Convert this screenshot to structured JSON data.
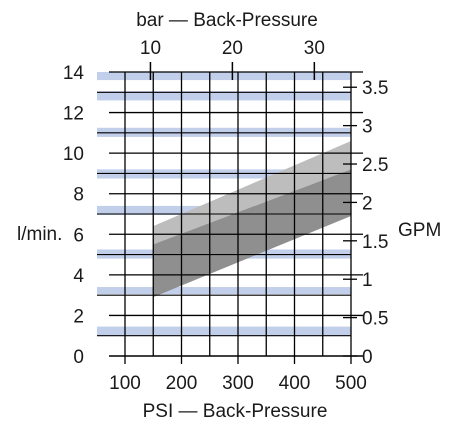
{
  "chart_data": {
    "type": "area",
    "title": "",
    "x_bottom": {
      "label": "PSI — Back-Pressure",
      "ticks": [
        100,
        200,
        300,
        400,
        500
      ],
      "range": [
        100,
        500
      ]
    },
    "x_top": {
      "label": "bar — Back-Pressure",
      "ticks": [
        10,
        20,
        30
      ]
    },
    "y_left": {
      "label": "l/min.",
      "ticks": [
        0,
        2,
        4,
        6,
        8,
        10,
        12,
        14
      ],
      "range": [
        0,
        14
      ]
    },
    "y_right": {
      "label": "GPM",
      "ticks": [
        "0",
        "0.5",
        "1",
        "1.5",
        "2",
        "2.5",
        "3",
        "3.5"
      ],
      "range": [
        0,
        3.7
      ]
    },
    "grid": true,
    "bands": [
      {
        "y_range": [
          1.0,
          1.45
        ]
      },
      {
        "y_range": [
          3.05,
          3.4
        ]
      },
      {
        "y_range": [
          4.8,
          5.25
        ]
      },
      {
        "y_range": [
          6.95,
          7.4
        ]
      },
      {
        "y_range": [
          8.75,
          9.2
        ]
      },
      {
        "y_range": [
          10.8,
          11.25
        ]
      },
      {
        "y_range": [
          12.6,
          13.05
        ]
      },
      {
        "y_range": [
          13.6,
          14.0
        ]
      }
    ],
    "series": [
      {
        "color": "#bdbdbd",
        "x": [
          150,
          500
        ],
        "lower": [
          5.5,
          9.2
        ],
        "upper": [
          6.4,
          10.6
        ]
      },
      {
        "color": "#8f8f8f",
        "x": [
          150,
          500
        ],
        "lower": [
          2.9,
          6.9
        ],
        "upper": [
          5.5,
          9.2
        ]
      }
    ],
    "colors": {
      "band": "#c2cfea",
      "grid": "#000000",
      "text": "#1a1a1a"
    }
  }
}
